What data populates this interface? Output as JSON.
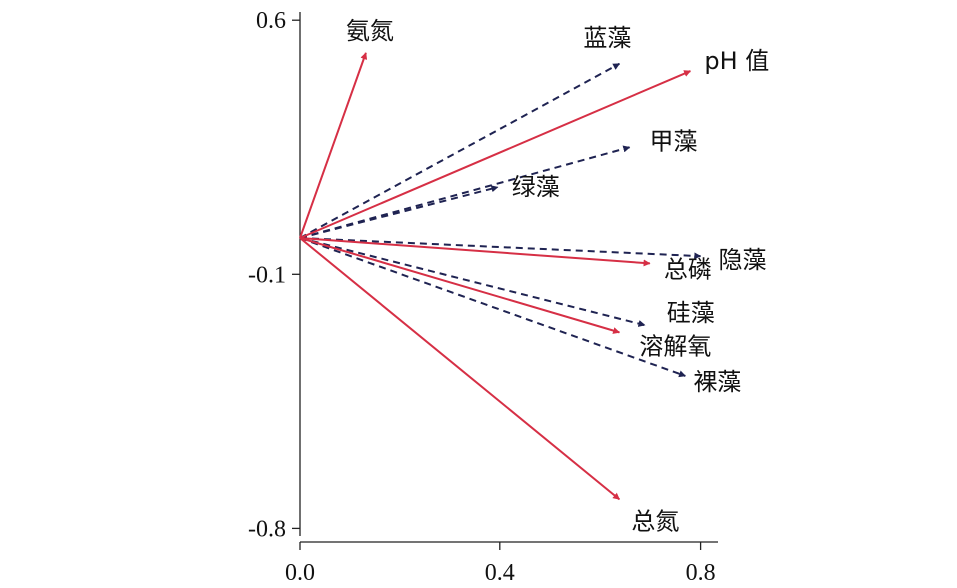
{
  "chart_data": {
    "type": "biplot",
    "title": "",
    "xlabel": "",
    "ylabel": "",
    "xlim": [
      0,
      0.85
    ],
    "ylim": [
      -0.8,
      0.6
    ],
    "x_ticks": [
      "0.0",
      "0.4",
      "0.8"
    ],
    "y_ticks": [
      "0.6",
      "-0.1",
      "-0.8"
    ],
    "x_tick_values": [
      0.0,
      0.4,
      0.8
    ],
    "y_tick_values": [
      0.6,
      -0.1,
      -0.8
    ],
    "grid": false,
    "origin": [
      0.0,
      0.0
    ],
    "environmental_vectors": [
      {
        "name": "氨氮",
        "x": 0.13,
        "y": 0.51
      },
      {
        "name": "pH 值",
        "x": 0.77,
        "y": 0.46
      },
      {
        "name": "总磷",
        "x": 0.69,
        "y": -0.07
      },
      {
        "name": "溶解氧",
        "x": 0.63,
        "y": -0.26
      },
      {
        "name": "总氮",
        "x": 0.63,
        "y": -0.72
      }
    ],
    "species_vectors": [
      {
        "name": "蓝藻",
        "x": 0.63,
        "y": 0.48
      },
      {
        "name": "甲藻",
        "x": 0.65,
        "y": 0.25
      },
      {
        "name": "绿藻",
        "x": 0.39,
        "y": 0.14
      },
      {
        "name": "隐藻",
        "x": 0.79,
        "y": -0.05
      },
      {
        "name": "硅藻",
        "x": 0.68,
        "y": -0.24
      },
      {
        "name": "裸藻",
        "x": 0.76,
        "y": -0.38
      }
    ],
    "colors": {
      "environmental": "#d62f45",
      "species": "#1f2352",
      "axis": "#222222"
    }
  }
}
